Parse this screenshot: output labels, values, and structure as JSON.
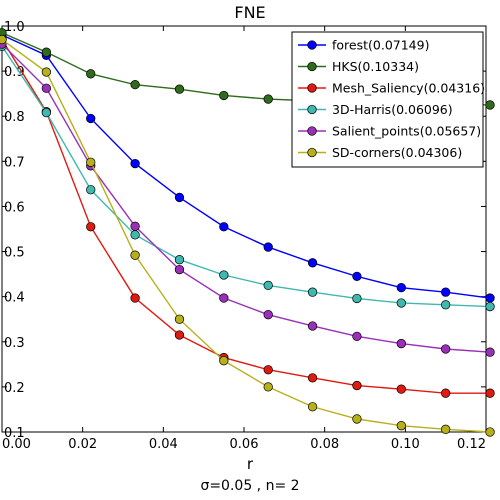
{
  "chart_data": {
    "type": "line",
    "title": "FNE",
    "xlabel": "r",
    "ylabel": "",
    "caption": "σ=0.05 , n= 2",
    "xlim": [
      0.0,
      0.12
    ],
    "ylim": [
      0.1,
      1.0
    ],
    "xticks": [
      "0.00",
      "0.02",
      "0.04",
      "0.06",
      "0.08",
      "0.10",
      "0.12"
    ],
    "yticks": [
      "0.1",
      "0.2",
      "0.3",
      "0.4",
      "0.5",
      "0.6",
      "0.7",
      "0.8",
      "0.9",
      "1.0"
    ],
    "grid": false,
    "legend_position": "top-right",
    "x": [
      0.0,
      0.011,
      0.022,
      0.033,
      0.044,
      0.055,
      0.066,
      0.077,
      0.088,
      0.099,
      0.11,
      0.121
    ],
    "series": [
      {
        "name": "forest(0.07149)",
        "color": "#0000ff",
        "values": [
          0.98,
          0.935,
          0.795,
          0.695,
          0.62,
          0.555,
          0.51,
          0.475,
          0.445,
          0.42,
          0.41,
          0.397
        ]
      },
      {
        "name": "HKS(0.10334)",
        "color": "#2e6b1b",
        "values": [
          0.985,
          0.942,
          0.894,
          0.87,
          0.86,
          0.846,
          0.838,
          0.834,
          0.832,
          0.829,
          0.827,
          0.825
        ]
      },
      {
        "name": "Mesh_Saliency(0.04316)",
        "color": "#e01a10",
        "values": [
          0.97,
          0.81,
          0.555,
          0.397,
          0.315,
          0.265,
          0.238,
          0.22,
          0.203,
          0.195,
          0.186,
          0.186
        ]
      },
      {
        "name": "3D-Harris(0.06096)",
        "color": "#3fb8b0",
        "values": [
          0.955,
          0.808,
          0.637,
          0.537,
          0.482,
          0.448,
          0.425,
          0.41,
          0.396,
          0.386,
          0.382,
          0.378
        ]
      },
      {
        "name": "Salient_points(0.05657)",
        "color": "#9b30b8",
        "values": [
          0.96,
          0.862,
          0.69,
          0.556,
          0.46,
          0.397,
          0.36,
          0.335,
          0.312,
          0.296,
          0.284,
          0.277
        ]
      },
      {
        "name": "SD-corners(0.04306)",
        "color": "#b7b01a",
        "values": [
          0.97,
          0.898,
          0.698,
          0.492,
          0.35,
          0.258,
          0.2,
          0.156,
          0.129,
          0.114,
          0.106,
          0.1
        ]
      }
    ]
  }
}
